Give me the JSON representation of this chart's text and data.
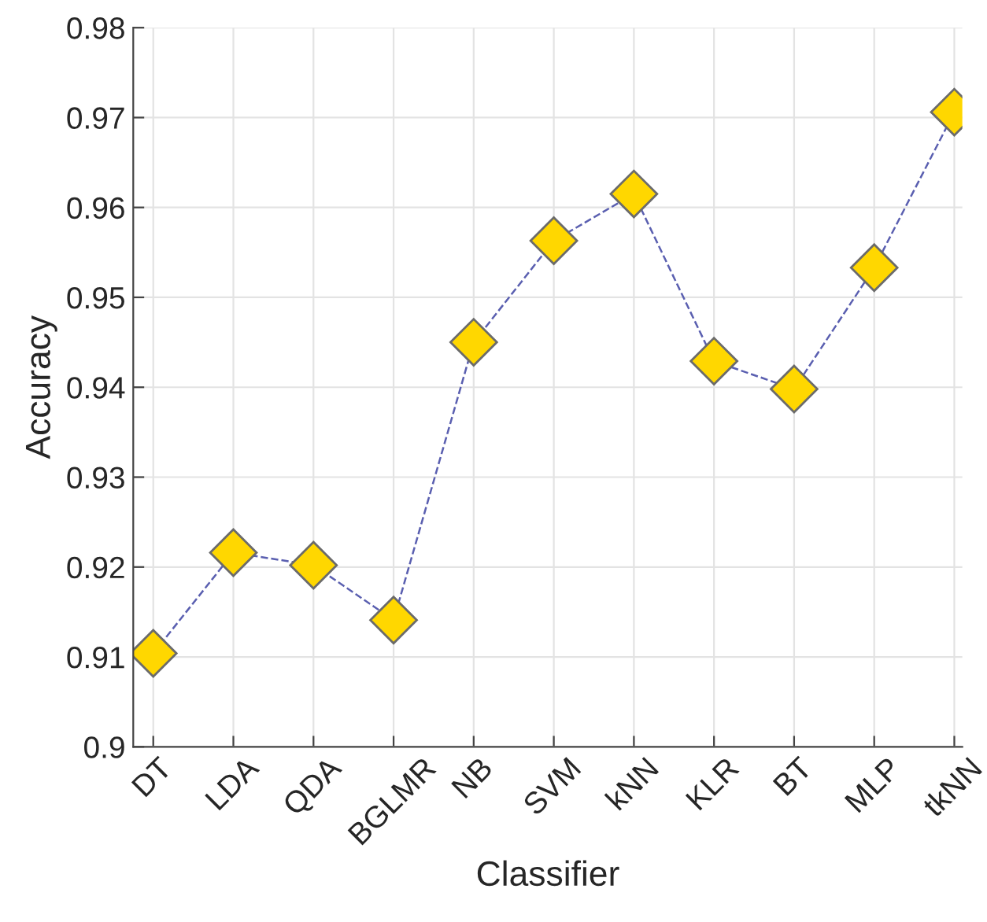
{
  "chart_data": {
    "type": "line",
    "xlabel": "Classifier",
    "ylabel": "Accuracy",
    "categories": [
      "DT",
      "LDA",
      "QDA",
      "BGLMR",
      "NB",
      "SVM",
      "kNN",
      "KLR",
      "BT",
      "MLP",
      "tkNN"
    ],
    "series": [
      {
        "color": "#ffd700",
        "values": [
          0.9104,
          0.9216,
          0.9202,
          0.9141,
          0.945,
          0.9563,
          0.9615,
          0.9429,
          0.9398,
          0.9533,
          0.9706
        ]
      }
    ],
    "ylim": [
      0.9,
      0.98
    ],
    "yticks": [
      0.9,
      0.91,
      0.92,
      0.93,
      0.94,
      0.95,
      0.96,
      0.97,
      0.98
    ],
    "grid": true,
    "marker": "diamond",
    "line_style": "dashed"
  }
}
